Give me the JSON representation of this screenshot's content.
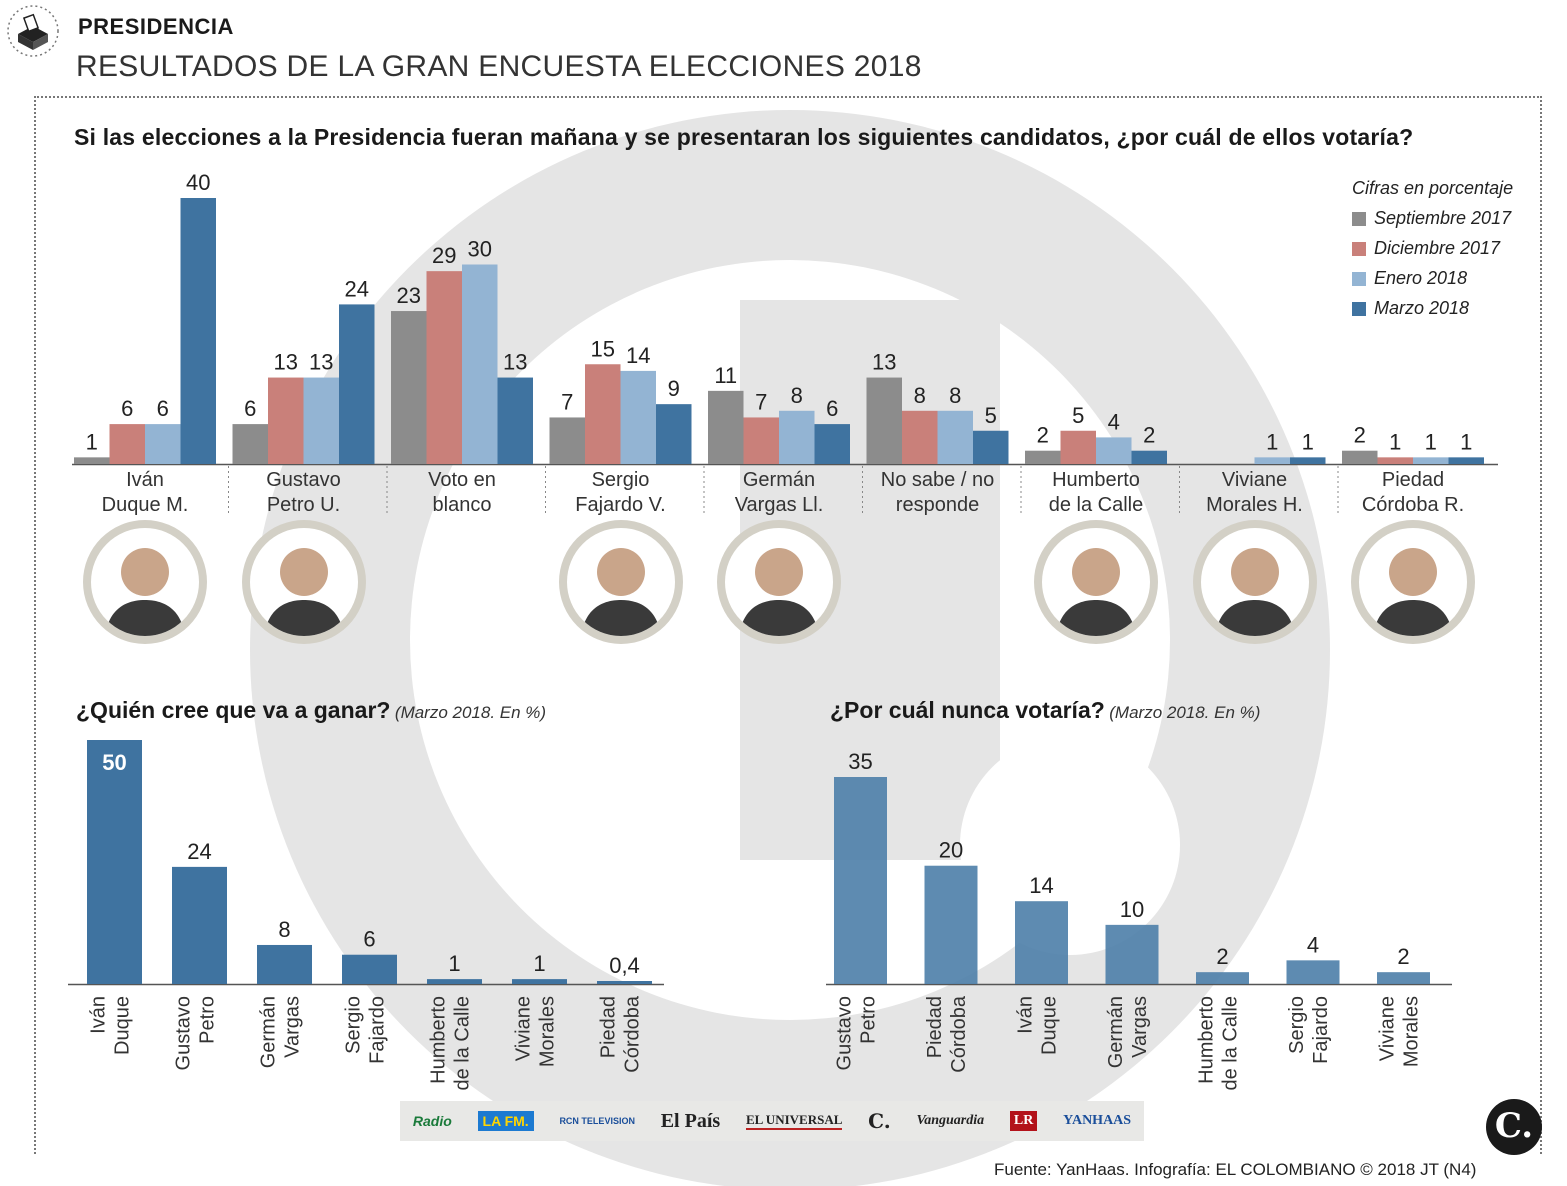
{
  "header": {
    "kicker": "PRESIDENCIA",
    "title": "RESULTADOS DE LA GRAN ENCUESTA ELECCIONES 2018"
  },
  "colors": {
    "sep2017": "#8c8c8c",
    "dic2017": "#c9807a",
    "ene2018": "#93b4d3",
    "mar2018": "#3f73a0",
    "watermark": "#e3e3e3"
  },
  "legend": {
    "title": "Cifras en porcentaje",
    "items": [
      "Septiembre 2017",
      "Diciembre 2017",
      "Enero 2018",
      "Marzo 2018"
    ]
  },
  "chart_data": [
    {
      "type": "bar",
      "title": "Si las elecciones a la Presidencia fueran mañana y se presentaran los siguientes candidatos, ¿por cuál de ellos votaría?",
      "categories": [
        [
          "Iván",
          "Duque M."
        ],
        [
          "Gustavo",
          "Petro U."
        ],
        [
          "Voto en",
          "blanco"
        ],
        [
          "Sergio",
          "Fajardo V."
        ],
        [
          "Germán",
          "Vargas Ll."
        ],
        [
          "No sabe / no",
          "responde"
        ],
        [
          "Humberto",
          "de la Calle"
        ],
        [
          "Viviane",
          "Morales H."
        ],
        [
          "Piedad",
          "Córdoba R."
        ]
      ],
      "series": [
        {
          "name": "Septiembre 2017",
          "values": [
            1,
            6,
            23,
            7,
            11,
            13,
            2,
            null,
            2
          ]
        },
        {
          "name": "Diciembre 2017",
          "values": [
            6,
            13,
            29,
            15,
            7,
            8,
            5,
            null,
            1
          ]
        },
        {
          "name": "Enero 2018",
          "values": [
            6,
            13,
            30,
            14,
            8,
            8,
            4,
            1,
            1
          ]
        },
        {
          "name": "Marzo 2018",
          "values": [
            40,
            24,
            13,
            9,
            6,
            5,
            2,
            1,
            1
          ]
        }
      ],
      "ylim": [
        0,
        40
      ],
      "legend": "top-right",
      "photos": [
        true,
        true,
        false,
        true,
        true,
        false,
        true,
        true,
        true
      ]
    },
    {
      "type": "bar",
      "title": "¿Quién cree que va a ganar?",
      "note": "(Marzo 2018. En %)",
      "categories": [
        [
          "Iván",
          "Duque"
        ],
        [
          "Gustavo",
          "Petro"
        ],
        [
          "Germán",
          "Vargas"
        ],
        [
          "Sergio",
          "Fajardo"
        ],
        [
          "Humberto",
          "de la Calle"
        ],
        [
          "Viviane",
          "Morales"
        ],
        [
          "Piedad",
          "Córdoba"
        ]
      ],
      "values": [
        50,
        24,
        8,
        6,
        1,
        1,
        0.4
      ],
      "labels": [
        "50",
        "24",
        "8",
        "6",
        "1",
        "1",
        "0,4"
      ],
      "ylim": [
        0,
        50
      ]
    },
    {
      "type": "bar",
      "title": "¿Por cuál nunca votaría?",
      "note": "(Marzo 2018. En %)",
      "categories": [
        [
          "Gustavo",
          "Petro"
        ],
        [
          "Piedad",
          "Córdoba"
        ],
        [
          "Iván",
          "Duque"
        ],
        [
          "Germán",
          "Vargas"
        ],
        [
          "Humberto",
          "de la Calle"
        ],
        [
          "Sergio",
          "Fajardo"
        ],
        [
          "Viviane",
          "Morales"
        ]
      ],
      "values": [
        35,
        20,
        14,
        10,
        2,
        4,
        2
      ],
      "labels": [
        "35",
        "20",
        "14",
        "10",
        "2",
        "4",
        "2"
      ],
      "ylim": [
        0,
        35
      ]
    }
  ],
  "footer": {
    "logos": [
      "Radio",
      "LA FM.",
      "RCN TELEVISION",
      "El País",
      "EL UNIVERSAL",
      "C.",
      "Vanguardia",
      "LR",
      "YANHAAS"
    ],
    "source": "Fuente: YanHaas. Infografía: EL COLOMBIANO © 2018 JT (N4)",
    "brand": "C."
  }
}
